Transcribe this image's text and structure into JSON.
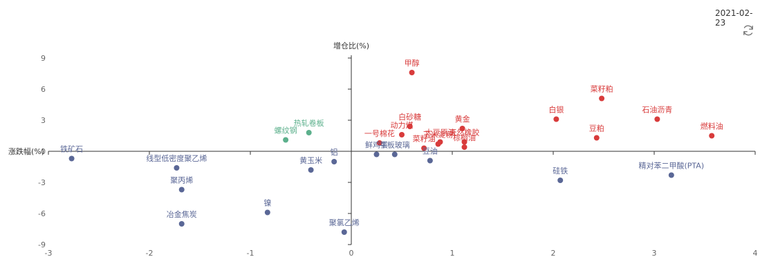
{
  "date": "2021-02-23",
  "colors": {
    "up": "#d83b3b",
    "down": "#5a6796",
    "neutral": "#5cb08c",
    "axis": "#333333"
  },
  "chart_data": {
    "type": "scatter",
    "xlabel": "涨跌幅(%)",
    "ylabel": "增仓比(%)",
    "xlim": [
      -3,
      4
    ],
    "ylim": [
      -9,
      9
    ],
    "xticks": [
      -3,
      -2,
      -1,
      0,
      1,
      2,
      3,
      4
    ],
    "yticks": [
      9,
      6,
      3,
      0,
      -3,
      -6,
      -9
    ],
    "xtick_labels": [
      "-3",
      "-2",
      "-1",
      "0",
      "1",
      "2",
      "3",
      "4"
    ],
    "ytick_labels": [
      "9",
      "6",
      "3",
      "0",
      "-3",
      "-6",
      "-9"
    ],
    "points": [
      {
        "name": "甲醇",
        "x": 0.6,
        "y": 7.6,
        "group": "up"
      },
      {
        "name": "菜籽粕",
        "x": 2.48,
        "y": 5.1,
        "group": "up"
      },
      {
        "name": "白银",
        "x": 2.03,
        "y": 3.1,
        "group": "up"
      },
      {
        "name": "石油沥青",
        "x": 3.03,
        "y": 3.1,
        "group": "up"
      },
      {
        "name": "豆粕",
        "x": 2.43,
        "y": 1.3,
        "group": "up"
      },
      {
        "name": "燃料油",
        "x": 3.57,
        "y": 1.5,
        "group": "up"
      },
      {
        "name": "白砂糖",
        "x": 0.58,
        "y": 2.4,
        "group": "up"
      },
      {
        "name": "黄金",
        "x": 1.1,
        "y": 2.2,
        "group": "up"
      },
      {
        "name": "动力煤",
        "x": 0.5,
        "y": 1.6,
        "group": "up"
      },
      {
        "name": "一号棉花",
        "x": 0.28,
        "y": 0.8,
        "group": "up"
      },
      {
        "name": "大豆原油",
        "x": 0.88,
        "y": 0.9,
        "group": "up"
      },
      {
        "name": "天然橡胶",
        "x": 1.12,
        "y": 0.9,
        "group": "up"
      },
      {
        "name": "玉米淀粉",
        "x": 0.86,
        "y": 0.7,
        "group": "up"
      },
      {
        "name": "棕榈油",
        "x": 1.12,
        "y": 0.4,
        "group": "up"
      },
      {
        "name": "菜籽油",
        "x": 0.72,
        "y": 0.3,
        "group": "up"
      },
      {
        "name": "热轧卷板",
        "x": -0.42,
        "y": 1.8,
        "group": "neutral"
      },
      {
        "name": "螺纹钢",
        "x": -0.65,
        "y": 1.1,
        "group": "neutral"
      },
      {
        "name": "铁矿石",
        "x": -2.77,
        "y": -0.7,
        "group": "down"
      },
      {
        "name": "线型低密度聚乙烯",
        "x": -1.73,
        "y": -1.6,
        "group": "down"
      },
      {
        "name": "聚丙烯",
        "x": -1.68,
        "y": -3.7,
        "group": "down"
      },
      {
        "name": "冶金焦炭",
        "x": -1.68,
        "y": -7.0,
        "group": "down"
      },
      {
        "name": "黄玉米",
        "x": -0.4,
        "y": -1.8,
        "group": "down"
      },
      {
        "name": "铝",
        "x": -0.17,
        "y": -1.0,
        "group": "down"
      },
      {
        "name": "镍",
        "x": -0.83,
        "y": -5.9,
        "group": "down"
      },
      {
        "name": "聚氯乙烯",
        "x": -0.07,
        "y": -7.8,
        "group": "down"
      },
      {
        "name": "鲜鸡蛋",
        "x": 0.25,
        "y": -0.3,
        "group": "down"
      },
      {
        "name": "平板玻璃",
        "x": 0.43,
        "y": -0.3,
        "group": "down"
      },
      {
        "name": "豆油",
        "x": 0.78,
        "y": -0.9,
        "group": "down"
      },
      {
        "name": "硅铁",
        "x": 2.07,
        "y": -2.8,
        "group": "down"
      },
      {
        "name": "精对苯二甲酸(PTA)",
        "x": 3.17,
        "y": -2.3,
        "group": "down"
      }
    ]
  }
}
